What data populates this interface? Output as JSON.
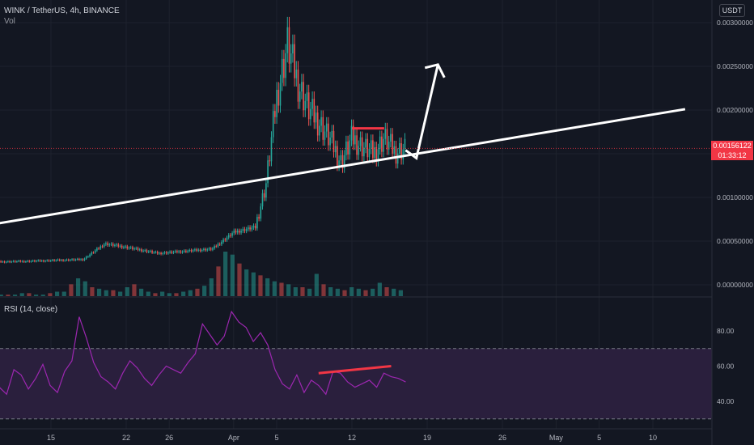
{
  "header": {
    "symbol": "WINK / TetherUS, 4h, BINANCE",
    "volume_label": "Vol",
    "rsi_label": "RSI (14, close)",
    "unit_badge": "USDT"
  },
  "price_tag": {
    "price": "0.00156122",
    "countdown": "01:33:12"
  },
  "colors": {
    "background": "#131722",
    "up": "#26a69a",
    "down": "#ef5350",
    "rsi_line": "#9c27b0",
    "rsi_band": "#2a1f3d",
    "annotation": "#ffffff",
    "divergence": "#f23645"
  },
  "chart_data": [
    {
      "type": "candlestick",
      "pane": "price",
      "y_axis_ticks": [
        "0.00300000",
        "0.00250000",
        "0.00200000",
        "0.00150000",
        "0.00100000",
        "0.00050000",
        "0.00000000"
      ],
      "ylim": [
        0,
        0.003
      ],
      "x_axis_ticks": [
        "15",
        "22",
        "26",
        "Apr",
        "5",
        "12",
        "19",
        "26",
        "May",
        "5",
        "10"
      ],
      "last_price": 0.00156122,
      "series_path": [
        {
          "date": "Mar 9",
          "close": 0.00026
        },
        {
          "date": "Mar 13",
          "close": 0.00027
        },
        {
          "date": "Mar 18",
          "close": 0.00029
        },
        {
          "date": "Mar 20",
          "close": 0.00047
        },
        {
          "date": "Mar 22",
          "close": 0.00043
        },
        {
          "date": "Mar 25",
          "close": 0.00036
        },
        {
          "date": "Mar 27",
          "close": 0.00038
        },
        {
          "date": "Mar 30",
          "close": 0.00041
        },
        {
          "date": "Apr 1",
          "close": 0.0006
        },
        {
          "date": "Apr 3",
          "close": 0.00066
        },
        {
          "date": "Apr 4",
          "close": 0.00115
        },
        {
          "date": "Apr 5",
          "close": 0.00215
        },
        {
          "date": "Apr 6",
          "close": 0.00275
        },
        {
          "date": "Apr 7",
          "close": 0.0023
        },
        {
          "date": "Apr 8",
          "close": 0.002
        },
        {
          "date": "Apr 9",
          "close": 0.00185
        },
        {
          "date": "Apr 10",
          "close": 0.00165
        },
        {
          "date": "Apr 11",
          "close": 0.0014
        },
        {
          "date": "Apr 12",
          "close": 0.00168
        },
        {
          "date": "Apr 13",
          "close": 0.00158
        },
        {
          "date": "Apr 14",
          "close": 0.0015
        },
        {
          "date": "Apr 15",
          "close": 0.00168
        },
        {
          "date": "Apr 16",
          "close": 0.00152
        },
        {
          "date": "Apr 17",
          "close": 0.00156
        }
      ],
      "trendline": [
        {
          "date": "Mar 9",
          "value": 0.00068
        },
        {
          "date": "May 13",
          "value": 0.00201
        }
      ],
      "resistance_line": [
        {
          "date": "Apr 12",
          "value": 0.00179
        },
        {
          "date": "Apr 15",
          "value": 0.00179
        }
      ],
      "projection_arrow": [
        {
          "date": "Apr 17",
          "value": 0.00154
        },
        {
          "date": "Apr 18",
          "value": 0.00145
        },
        {
          "date": "Apr 20",
          "value": 0.00252
        }
      ]
    },
    {
      "type": "bar",
      "pane": "volume",
      "values": [
        1,
        1,
        1,
        1,
        1,
        2,
        2,
        1,
        1,
        2,
        3,
        3,
        8,
        12,
        10,
        6,
        5,
        4,
        4,
        3,
        6,
        8,
        5,
        3,
        2,
        3,
        2,
        2,
        3,
        4,
        5,
        7,
        12,
        20,
        30,
        28,
        22,
        18,
        16,
        14,
        12,
        10,
        9,
        8,
        6,
        6,
        5,
        15,
        8,
        6,
        5,
        4,
        6,
        5,
        4,
        5,
        9,
        6,
        5,
        4
      ]
    },
    {
      "type": "line",
      "pane": "rsi",
      "y_axis_ticks": [
        "80.00",
        "60.00",
        "40.00"
      ],
      "ylim": [
        25,
        95
      ],
      "band": [
        30,
        70
      ],
      "values": [
        52,
        60,
        48,
        44,
        58,
        55,
        47,
        53,
        61,
        49,
        45,
        57,
        63,
        88,
        76,
        62,
        54,
        51,
        47,
        56,
        63,
        59,
        53,
        49,
        55,
        60,
        58,
        56,
        62,
        67,
        84,
        78,
        72,
        77,
        91,
        85,
        82,
        74,
        79,
        72,
        58,
        50,
        47,
        55,
        45,
        52,
        49,
        44,
        57,
        56,
        51,
        48,
        50,
        52,
        48,
        56,
        54,
        53,
        51
      ],
      "divergence_line": [
        {
          "index": 46,
          "value": 56
        },
        {
          "index": 56,
          "value": 60
        }
      ]
    }
  ]
}
